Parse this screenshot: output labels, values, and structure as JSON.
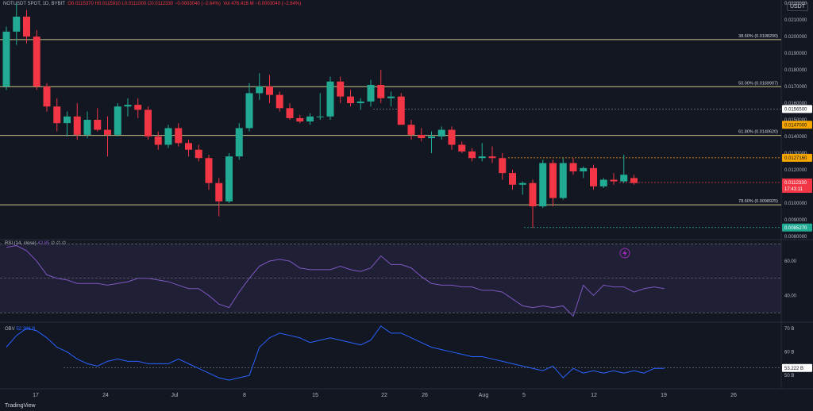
{
  "header": {
    "symbol": "NOTUSDT SPOT, 1D, BYBIT",
    "ohlc": "O0.0115370 H0.0115910 L0.0111000 C0.0112330 −0.0003040 (−2.64%)",
    "volume": "Vol 476.416 M −0.0003040 (−2.64%)"
  },
  "currency_button": "USDT",
  "branding": "TradingView",
  "chart_data": {
    "type": "candlestick",
    "price_axis": {
      "ticks": [
        "0.0220000",
        "0.0210000",
        "0.0200000",
        "0.0190000",
        "0.0180000",
        "0.0170000",
        "0.0160000",
        "0.0150000",
        "0.0140000",
        "0.0130000",
        "0.0120000",
        "0.0110000",
        "0.0100000",
        "0.0090000",
        "0.0080000"
      ],
      "range": [
        0.0078,
        0.0222
      ]
    },
    "time_axis": [
      "17",
      "24",
      "Jul",
      "8",
      "15",
      "22",
      "26",
      "Aug",
      "5",
      "12",
      "19",
      "26"
    ],
    "fib_levels": [
      {
        "label": "38.60% (0.0198200)",
        "value": 0.01982
      },
      {
        "label": "50.00% (0.0169907)",
        "value": 0.0169907
      },
      {
        "label": "61.80% (0.0140620)",
        "value": 0.014062
      },
      {
        "label": "78.60% (0.0098925)",
        "value": 0.0098925
      }
    ],
    "price_tags": [
      {
        "text": "0.0156500",
        "value": 0.01565,
        "bg": "#ffffff",
        "fg": "#131722"
      },
      {
        "text": "0.0147000",
        "value": 0.0147,
        "bg": "#f7a600",
        "fg": "#131722"
      },
      {
        "text": "0.0127160",
        "value": 0.012716,
        "bg": "#f7a600",
        "fg": "#131722"
      },
      {
        "text": "0.0112330",
        "value": 0.011233,
        "bg": "#f23645",
        "fg": "#ffffff"
      },
      {
        "text": "17:43:11",
        "value": 0.01085,
        "bg": "#f23645",
        "fg": "#ffffff"
      },
      {
        "text": "0.0085270",
        "value": 0.008527,
        "bg": "#22ab94",
        "fg": "#ffffff"
      }
    ],
    "candles": [
      {
        "o": 0.017,
        "h": 0.0206,
        "l": 0.0168,
        "c": 0.0203
      },
      {
        "o": 0.0203,
        "h": 0.022,
        "l": 0.0195,
        "c": 0.0212
      },
      {
        "o": 0.0212,
        "h": 0.0216,
        "l": 0.0196,
        "c": 0.02
      },
      {
        "o": 0.02,
        "h": 0.0204,
        "l": 0.0168,
        "c": 0.017
      },
      {
        "o": 0.017,
        "h": 0.0172,
        "l": 0.0155,
        "c": 0.0158
      },
      {
        "o": 0.0158,
        "h": 0.0163,
        "l": 0.0143,
        "c": 0.0148
      },
      {
        "o": 0.0148,
        "h": 0.0155,
        "l": 0.014,
        "c": 0.0152
      },
      {
        "o": 0.0152,
        "h": 0.016,
        "l": 0.0138,
        "c": 0.0141
      },
      {
        "o": 0.0141,
        "h": 0.0155,
        "l": 0.0139,
        "c": 0.015
      },
      {
        "o": 0.015,
        "h": 0.0157,
        "l": 0.0143,
        "c": 0.0144
      },
      {
        "o": 0.0144,
        "h": 0.0152,
        "l": 0.0128,
        "c": 0.0141
      },
      {
        "o": 0.0141,
        "h": 0.016,
        "l": 0.014,
        "c": 0.0158
      },
      {
        "o": 0.0158,
        "h": 0.0163,
        "l": 0.0152,
        "c": 0.0159
      },
      {
        "o": 0.0159,
        "h": 0.0163,
        "l": 0.0151,
        "c": 0.0156
      },
      {
        "o": 0.0156,
        "h": 0.0158,
        "l": 0.0138,
        "c": 0.014
      },
      {
        "o": 0.014,
        "h": 0.0143,
        "l": 0.0132,
        "c": 0.0135
      },
      {
        "o": 0.0135,
        "h": 0.0147,
        "l": 0.0133,
        "c": 0.0145
      },
      {
        "o": 0.0145,
        "h": 0.0148,
        "l": 0.0134,
        "c": 0.0136
      },
      {
        "o": 0.0136,
        "h": 0.0138,
        "l": 0.0128,
        "c": 0.0132
      },
      {
        "o": 0.0132,
        "h": 0.0135,
        "l": 0.0125,
        "c": 0.0127
      },
      {
        "o": 0.0127,
        "h": 0.0129,
        "l": 0.0108,
        "c": 0.0112
      },
      {
        "o": 0.0112,
        "h": 0.0115,
        "l": 0.0092,
        "c": 0.0101
      },
      {
        "o": 0.0101,
        "h": 0.013,
        "l": 0.01,
        "c": 0.0128
      },
      {
        "o": 0.0128,
        "h": 0.0148,
        "l": 0.0126,
        "c": 0.0145
      },
      {
        "o": 0.0145,
        "h": 0.0172,
        "l": 0.0143,
        "c": 0.0166
      },
      {
        "o": 0.0166,
        "h": 0.0178,
        "l": 0.0162,
        "c": 0.017
      },
      {
        "o": 0.017,
        "h": 0.0177,
        "l": 0.016,
        "c": 0.0165
      },
      {
        "o": 0.0165,
        "h": 0.0167,
        "l": 0.0155,
        "c": 0.0157
      },
      {
        "o": 0.0157,
        "h": 0.016,
        "l": 0.015,
        "c": 0.0151
      },
      {
        "o": 0.0151,
        "h": 0.0153,
        "l": 0.0148,
        "c": 0.0149
      },
      {
        "o": 0.0149,
        "h": 0.0154,
        "l": 0.0147,
        "c": 0.0152
      },
      {
        "o": 0.0152,
        "h": 0.0166,
        "l": 0.015,
        "c": 0.0152
      },
      {
        "o": 0.0152,
        "h": 0.0176,
        "l": 0.015,
        "c": 0.0173
      },
      {
        "o": 0.0173,
        "h": 0.0176,
        "l": 0.016,
        "c": 0.0164
      },
      {
        "o": 0.0164,
        "h": 0.0168,
        "l": 0.0158,
        "c": 0.016
      },
      {
        "o": 0.016,
        "h": 0.0163,
        "l": 0.0156,
        "c": 0.0161
      },
      {
        "o": 0.0161,
        "h": 0.0174,
        "l": 0.0158,
        "c": 0.0171
      },
      {
        "o": 0.0171,
        "h": 0.018,
        "l": 0.016,
        "c": 0.0163
      },
      {
        "o": 0.0163,
        "h": 0.0167,
        "l": 0.0158,
        "c": 0.0164
      },
      {
        "o": 0.0164,
        "h": 0.0166,
        "l": 0.0148,
        "c": 0.0147
      },
      {
        "o": 0.0147,
        "h": 0.015,
        "l": 0.0138,
        "c": 0.0141
      },
      {
        "o": 0.0141,
        "h": 0.0145,
        "l": 0.0137,
        "c": 0.0139
      },
      {
        "o": 0.0139,
        "h": 0.0143,
        "l": 0.013,
        "c": 0.014
      },
      {
        "o": 0.014,
        "h": 0.0146,
        "l": 0.0138,
        "c": 0.0144
      },
      {
        "o": 0.0144,
        "h": 0.0146,
        "l": 0.0132,
        "c": 0.0135
      },
      {
        "o": 0.0135,
        "h": 0.0137,
        "l": 0.013,
        "c": 0.0131
      },
      {
        "o": 0.0131,
        "h": 0.0133,
        "l": 0.0125,
        "c": 0.0127
      },
      {
        "o": 0.0127,
        "h": 0.0136,
        "l": 0.0125,
        "c": 0.0128
      },
      {
        "o": 0.0128,
        "h": 0.0134,
        "l": 0.0124,
        "c": 0.0127
      },
      {
        "o": 0.0127,
        "h": 0.013,
        "l": 0.0114,
        "c": 0.0118
      },
      {
        "o": 0.0118,
        "h": 0.012,
        "l": 0.0108,
        "c": 0.0111
      },
      {
        "o": 0.0111,
        "h": 0.0113,
        "l": 0.0105,
        "c": 0.0112
      },
      {
        "o": 0.0112,
        "h": 0.0114,
        "l": 0.0085,
        "c": 0.0098
      },
      {
        "o": 0.0098,
        "h": 0.0126,
        "l": 0.0097,
        "c": 0.0124
      },
      {
        "o": 0.0124,
        "h": 0.0126,
        "l": 0.0098,
        "c": 0.0103
      },
      {
        "o": 0.0103,
        "h": 0.0127,
        "l": 0.0102,
        "c": 0.0124
      },
      {
        "o": 0.0124,
        "h": 0.0127,
        "l": 0.0117,
        "c": 0.0119
      },
      {
        "o": 0.0119,
        "h": 0.0122,
        "l": 0.0115,
        "c": 0.0121
      },
      {
        "o": 0.0121,
        "h": 0.0123,
        "l": 0.0108,
        "c": 0.011
      },
      {
        "o": 0.011,
        "h": 0.0115,
        "l": 0.0109,
        "c": 0.0114
      },
      {
        "o": 0.0114,
        "h": 0.0118,
        "l": 0.0111,
        "c": 0.0113
      },
      {
        "o": 0.0113,
        "h": 0.0129,
        "l": 0.0112,
        "c": 0.0117
      },
      {
        "o": 0.0115,
        "h": 0.0117,
        "l": 0.0111,
        "c": 0.0112
      }
    ],
    "rsi": {
      "label": "RSI (14, close)",
      "value_text": "43.85",
      "status": "∅ ∅ ∅",
      "ticks": [
        "60.00",
        "40.00"
      ],
      "range": [
        25,
        72
      ],
      "bands": [
        70,
        50,
        30
      ],
      "values": [
        68,
        69,
        66,
        60,
        52,
        50,
        49,
        47,
        47,
        47,
        46,
        47,
        48,
        50,
        50,
        49,
        48,
        46,
        44,
        44,
        40,
        35,
        33,
        42,
        50,
        57,
        60,
        61,
        60,
        56,
        55,
        55,
        55,
        57,
        55,
        54,
        56,
        63,
        58,
        58,
        56,
        51,
        47,
        46,
        46,
        45,
        45,
        43,
        43,
        42,
        38,
        34,
        33,
        34,
        33,
        34,
        28,
        46,
        40,
        46,
        45,
        45,
        42,
        44,
        45,
        44
      ]
    },
    "obv": {
      "label": "OBV",
      "value_text": "52.386 B",
      "ticks": [
        "70 B",
        "60 B",
        "50 B"
      ],
      "current_tag": "53.222 B",
      "range": [
        45,
        72
      ],
      "values": [
        62,
        67,
        70,
        69,
        66,
        62,
        60,
        57,
        55,
        54,
        56,
        57,
        56,
        56,
        55,
        55,
        55,
        57,
        55,
        53,
        51,
        49,
        48,
        49,
        50,
        62,
        66,
        68,
        67,
        66,
        64,
        65,
        66,
        65,
        64,
        63,
        65,
        71,
        68,
        68,
        66,
        64,
        62,
        61,
        60,
        59,
        58,
        58,
        57,
        56,
        55,
        54,
        53,
        52,
        54,
        49,
        53,
        51,
        52,
        51,
        52,
        51,
        52,
        51,
        53,
        53
      ]
    }
  },
  "colors": {
    "up": "#22ab94",
    "down": "#f23645",
    "fib": "#c9c48a",
    "rsi": "#7e57c2",
    "obv": "#2962ff",
    "grid": "#1e222d"
  }
}
